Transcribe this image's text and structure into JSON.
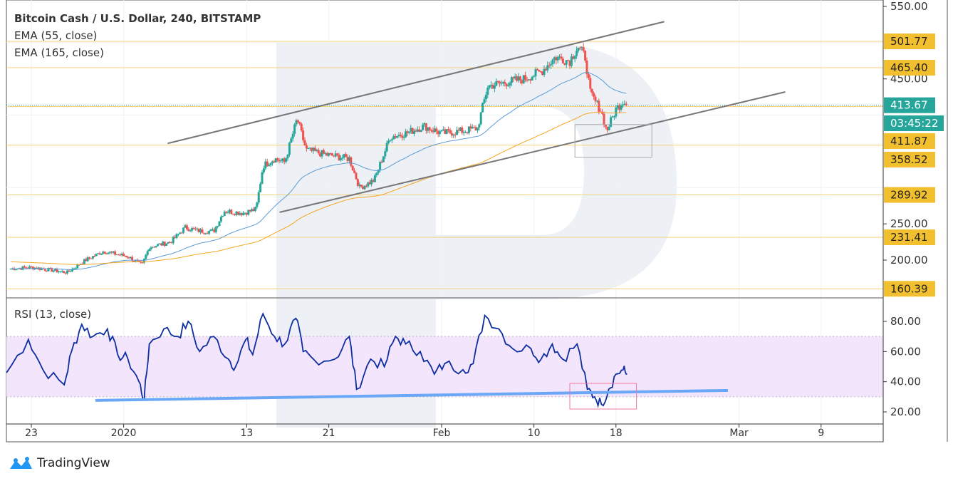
{
  "header": {
    "title": "Bitcoin Cash / U.S. Dollar, 240, BITSTAMP",
    "ema1": "EMA (55, close)",
    "ema2": "EMA (165, close)",
    "rsi_label": "RSI (13, close)"
  },
  "brand": {
    "name": "TradingView",
    "icon": "tradingview-cloud-icon"
  },
  "colors": {
    "up": "#26a69a",
    "down": "#ef5350",
    "ema55": "#5b9bd5",
    "ema165": "#f5a623",
    "rsi": "#0d2ea0",
    "level_label": "#f2bf2e",
    "current_label": "#26a69a",
    "channel": "#777777",
    "rsi_trend": "#6aa8f7",
    "box": "#f07aa0",
    "rsi_band": "#f3e5fc"
  },
  "chart_data": [
    {
      "type": "candlestick",
      "timeframe": "240",
      "price_axis": {
        "ticks": [
          "550.00",
          "450.00",
          "250.00",
          "200.00"
        ],
        "range": [
          155,
          555
        ]
      },
      "x_ticks": [
        "23",
        "2020",
        "13",
        "21",
        "Feb",
        "10",
        "18",
        "Mar",
        "9"
      ],
      "levels": [
        "501.77",
        "465.40",
        "411.87",
        "358.52",
        "289.92",
        "231.41",
        "160.39"
      ],
      "current_price": "413.67",
      "countdown": "03:45:22",
      "close_path": [
        [
          "2019-12-21T00:00",
          188
        ],
        [
          "2019-12-23T00:00",
          190
        ],
        [
          "2019-12-26T12:00",
          183
        ],
        [
          "2019-12-28T07:00",
          200
        ],
        [
          "2019-12-30T00:00",
          212
        ],
        [
          "2020-01-01T10:00",
          205
        ],
        [
          "2020-01-02T19:00",
          193
        ],
        [
          "2020-01-03T12:00",
          218
        ],
        [
          "2020-01-05T14:00",
          225
        ],
        [
          "2020-01-07T00:00",
          245
        ],
        [
          "2020-01-08T10:00",
          240
        ],
        [
          "2020-01-09T19:00",
          240
        ],
        [
          "2020-01-10T19:00",
          268
        ],
        [
          "2020-01-12T14:00",
          265
        ],
        [
          "2020-01-13T22:00",
          270
        ],
        [
          "2020-01-14T14:00",
          330
        ],
        [
          "2020-01-15T17:00",
          340
        ],
        [
          "2020-01-16T17:00",
          335
        ],
        [
          "2020-01-17T22:00",
          395
        ],
        [
          "2020-01-18T19:00",
          352
        ],
        [
          "2020-01-20T22:00",
          345
        ],
        [
          "2020-01-23T00:00",
          340
        ],
        [
          "2020-01-24T00:00",
          300
        ],
        [
          "2020-01-25T10:00",
          310
        ],
        [
          "2020-01-27T00:00",
          370
        ],
        [
          "2020-01-28T12:00",
          375
        ],
        [
          "2020-01-30T07:00",
          385
        ],
        [
          "2020-02-01T00:00",
          375
        ],
        [
          "2020-02-03T02:00",
          378
        ],
        [
          "2020-02-04T12:00",
          382
        ],
        [
          "2020-02-05T12:00",
          440
        ],
        [
          "2020-02-07T05:00",
          445
        ],
        [
          "2020-02-09T00:00",
          450
        ],
        [
          "2020-02-10T17:00",
          460
        ],
        [
          "2020-02-12T02:00",
          480
        ],
        [
          "2020-02-13T12:00",
          475
        ],
        [
          "2020-02-14T07:00",
          495
        ],
        [
          "2020-02-15T00:00",
          480
        ],
        [
          "2020-02-15T12:00",
          430
        ],
        [
          "2020-02-16T14:00",
          405
        ],
        [
          "2020-02-17T02:00",
          378
        ],
        [
          "2020-02-18T00:00",
          408
        ],
        [
          "2020-02-18T17:00",
          420
        ],
        [
          "2020-02-19T02:00",
          413.67
        ]
      ],
      "channel_upper": [
        [
          "2020-01-05T07:00",
          361
        ],
        [
          "2020-02-22T17:00",
          529
        ]
      ],
      "channel_lower": [
        [
          "2020-01-16T05:00",
          266
        ],
        [
          "2020-03-05T12:00",
          432
        ]
      ],
      "box": {
        "from": "2020-02-14T00:00",
        "to": "2020-02-21T12:00",
        "top": 387,
        "bottom": 342
      }
    },
    {
      "type": "line",
      "name": "RSI (13, close)",
      "y_ticks": [
        "80.00",
        "60.00",
        "40.00",
        "20.00"
      ],
      "range": [
        17,
        90
      ],
      "band": [
        30,
        70
      ],
      "values": [
        [
          "2019-12-20T14:00",
          46
        ],
        [
          "2019-12-22T17:00",
          68
        ],
        [
          "2019-12-24T03:00",
          48
        ],
        [
          "2019-12-26T05:00",
          38
        ],
        [
          "2019-12-26T22:00",
          60
        ],
        [
          "2019-12-27T22:00",
          78
        ],
        [
          "2019-12-29T00:00",
          70
        ],
        [
          "2019-12-30T10:00",
          75
        ],
        [
          "2019-12-31T10:00",
          58
        ],
        [
          "2020-01-01T10:00",
          55
        ],
        [
          "2020-01-02T12:00",
          40
        ],
        [
          "2020-01-03T00:00",
          28
        ],
        [
          "2020-01-03T12:00",
          65
        ],
        [
          "2020-01-04T22:00",
          75
        ],
        [
          "2020-01-06T07:00",
          70
        ],
        [
          "2020-01-07T07:00",
          80
        ],
        [
          "2020-01-08T10:00",
          60
        ],
        [
          "2020-01-09T19:00",
          70
        ],
        [
          "2020-01-11T05:00",
          55
        ],
        [
          "2020-01-11T22:00",
          50
        ],
        [
          "2020-01-12T22:00",
          68
        ],
        [
          "2020-01-13T14:00",
          58
        ],
        [
          "2020-01-14T14:00",
          85
        ],
        [
          "2020-01-15T17:00",
          70
        ],
        [
          "2020-01-16T17:00",
          65
        ],
        [
          "2020-01-17T19:00",
          82
        ],
        [
          "2020-01-18T12:00",
          60
        ],
        [
          "2020-01-19T12:00",
          55
        ],
        [
          "2020-01-21T14:00",
          55
        ],
        [
          "2020-01-23T00:00",
          70
        ],
        [
          "2020-01-23T17:00",
          35
        ],
        [
          "2020-01-25T02:00",
          55
        ],
        [
          "2020-01-26T10:00",
          50
        ],
        [
          "2020-01-27T12:00",
          70
        ],
        [
          "2020-01-28T12:00",
          65
        ],
        [
          "2020-01-29T22:00",
          60
        ],
        [
          "2020-01-31T07:00",
          45
        ],
        [
          "2020-02-01T07:00",
          52
        ],
        [
          "2020-02-03T02:00",
          48
        ],
        [
          "2020-02-04T02:00",
          52
        ],
        [
          "2020-02-05T05:00",
          84
        ],
        [
          "2020-02-06T14:00",
          75
        ],
        [
          "2020-02-07T22:00",
          62
        ],
        [
          "2020-02-09T17:00",
          62
        ],
        [
          "2020-02-10T17:00",
          55
        ],
        [
          "2020-02-11T19:00",
          65
        ],
        [
          "2020-02-12T19:00",
          55
        ],
        [
          "2020-02-14T05:00",
          65
        ],
        [
          "2020-02-15T05:00",
          35
        ],
        [
          "2020-02-15T22:00",
          30
        ],
        [
          "2020-02-16T14:00",
          25
        ],
        [
          "2020-02-17T07:00",
          35
        ],
        [
          "2020-02-18T00:00",
          45
        ],
        [
          "2020-02-18T17:00",
          48
        ],
        [
          "2020-02-19T02:00",
          45
        ]
      ],
      "trendline": [
        [
          "2019-12-29T06:00",
          27.6
        ],
        [
          "2020-02-28T22:00",
          34.2
        ]
      ],
      "box": {
        "from": "2020-02-13T12:00",
        "to": "2020-02-20T00:00",
        "top": 38.9,
        "bottom": 21.9
      }
    }
  ]
}
